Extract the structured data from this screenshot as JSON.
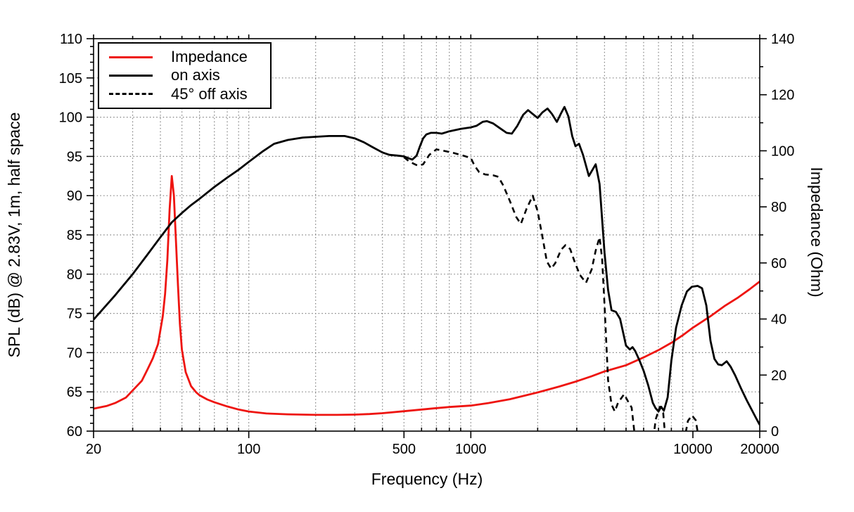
{
  "figure": {
    "kind": "speaker frequency response / impedance plot",
    "background": "#ffffff",
    "frame_color": "#000000",
    "grid_color": "#7f7f7f",
    "axes": {
      "x": {
        "label": "Frequency (Hz)",
        "scale": "log",
        "min": 20,
        "max": 20000,
        "major_ticks": [
          20,
          100,
          500,
          1000,
          10000,
          20000
        ],
        "major_tick_labels": [
          "20",
          "100",
          "500",
          "1000",
          "10000",
          "20000"
        ],
        "minor_ticks": [
          30,
          40,
          50,
          60,
          70,
          80,
          90,
          200,
          300,
          400,
          600,
          700,
          800,
          900,
          2000,
          3000,
          4000,
          5000,
          6000,
          7000,
          8000,
          9000
        ]
      },
      "y_left": {
        "label": "SPL (dB) @ 2.83V, 1m, half space",
        "min": 60,
        "max": 110,
        "major_ticks": [
          60,
          65,
          70,
          75,
          80,
          85,
          90,
          95,
          100,
          105,
          110
        ],
        "major_tick_labels": [
          "60",
          "65",
          "70",
          "75",
          "80",
          "85",
          "90",
          "95",
          "100",
          "105",
          "110"
        ],
        "minor_step": 1
      },
      "y_right": {
        "label": "Impedance (Ohm)",
        "min": 0,
        "max": 140,
        "major_ticks": [
          0,
          20,
          40,
          60,
          80,
          100,
          120,
          140
        ],
        "major_tick_labels": [
          "0",
          "20",
          "40",
          "60",
          "80",
          "100",
          "120",
          "140"
        ],
        "minor_step": 10
      }
    },
    "legend": {
      "position": "top-left",
      "items": [
        {
          "label": "Impedance",
          "color": "#ee1410",
          "style": "solid"
        },
        {
          "label": "on axis",
          "color": "#000000",
          "style": "solid"
        },
        {
          "label": "45° off axis",
          "color": "#000000",
          "style": "dashed"
        }
      ]
    }
  },
  "chart_data": {
    "type": "line",
    "x_unit": "Hz",
    "x_scale": "log",
    "xlim": [
      20,
      20000
    ],
    "ylim_left_spl_db": [
      60,
      110
    ],
    "ylim_right_impedance_ohm": [
      0,
      140
    ],
    "grid": "dotted, vertical at log decade steps, horizontal every 5 dB",
    "series": [
      {
        "name": "Impedance",
        "axis": "right",
        "unit": "Ohm",
        "color": "#ee1410",
        "style": "solid",
        "points": [
          [
            20,
            8.0
          ],
          [
            23,
            9.0
          ],
          [
            25,
            10.0
          ],
          [
            28,
            12.0
          ],
          [
            30,
            14.5
          ],
          [
            33,
            18.0
          ],
          [
            35,
            22.0
          ],
          [
            37,
            26.0
          ],
          [
            39,
            31.0
          ],
          [
            41,
            41.0
          ],
          [
            42,
            49.0
          ],
          [
            43,
            61.0
          ],
          [
            44,
            79.0
          ],
          [
            45,
            91.0
          ],
          [
            46,
            84.0
          ],
          [
            47,
            68.0
          ],
          [
            48,
            52.0
          ],
          [
            49,
            38.0
          ],
          [
            50,
            29.0
          ],
          [
            52,
            21.0
          ],
          [
            55,
            16.0
          ],
          [
            58,
            13.8
          ],
          [
            60,
            12.8
          ],
          [
            65,
            11.3
          ],
          [
            70,
            10.3
          ],
          [
            80,
            8.8
          ],
          [
            90,
            7.7
          ],
          [
            100,
            7.0
          ],
          [
            120,
            6.3
          ],
          [
            150,
            6.0
          ],
          [
            200,
            5.8
          ],
          [
            250,
            5.8
          ],
          [
            300,
            5.9
          ],
          [
            350,
            6.1
          ],
          [
            400,
            6.4
          ],
          [
            500,
            7.1
          ],
          [
            600,
            7.7
          ],
          [
            700,
            8.2
          ],
          [
            800,
            8.6
          ],
          [
            1000,
            9.1
          ],
          [
            1200,
            10.0
          ],
          [
            1500,
            11.4
          ],
          [
            2000,
            13.8
          ],
          [
            2500,
            15.9
          ],
          [
            3000,
            17.8
          ],
          [
            3500,
            19.6
          ],
          [
            4000,
            21.3
          ],
          [
            5000,
            23.5
          ],
          [
            6000,
            26.3
          ],
          [
            7000,
            28.9
          ],
          [
            8000,
            31.5
          ],
          [
            9000,
            34.2
          ],
          [
            10000,
            36.9
          ],
          [
            12000,
            41.0
          ],
          [
            14000,
            44.8
          ],
          [
            16000,
            47.7
          ],
          [
            18000,
            50.6
          ],
          [
            20000,
            53.4
          ]
        ]
      },
      {
        "name": "on axis",
        "axis": "left",
        "unit": "dB",
        "color": "#000000",
        "style": "solid",
        "points": [
          [
            20,
            74.2
          ],
          [
            25,
            77.3
          ],
          [
            30,
            80.0
          ],
          [
            35,
            82.5
          ],
          [
            40,
            84.7
          ],
          [
            45,
            86.6
          ],
          [
            50,
            87.8
          ],
          [
            55,
            88.8
          ],
          [
            60,
            89.6
          ],
          [
            70,
            91.1
          ],
          [
            80,
            92.3
          ],
          [
            90,
            93.3
          ],
          [
            100,
            94.3
          ],
          [
            115,
            95.6
          ],
          [
            130,
            96.6
          ],
          [
            150,
            97.1
          ],
          [
            175,
            97.4
          ],
          [
            200,
            97.5
          ],
          [
            230,
            97.6
          ],
          [
            270,
            97.6
          ],
          [
            300,
            97.3
          ],
          [
            330,
            96.8
          ],
          [
            360,
            96.2
          ],
          [
            400,
            95.5
          ],
          [
            430,
            95.2
          ],
          [
            470,
            95.1
          ],
          [
            500,
            95.0
          ],
          [
            520,
            94.8
          ],
          [
            545,
            94.6
          ],
          [
            570,
            95.1
          ],
          [
            590,
            96.3
          ],
          [
            610,
            97.3
          ],
          [
            630,
            97.8
          ],
          [
            660,
            98.0
          ],
          [
            700,
            98.0
          ],
          [
            740,
            97.9
          ],
          [
            800,
            98.2
          ],
          [
            900,
            98.5
          ],
          [
            1000,
            98.7
          ],
          [
            1060,
            98.9
          ],
          [
            1130,
            99.4
          ],
          [
            1180,
            99.5
          ],
          [
            1260,
            99.2
          ],
          [
            1350,
            98.6
          ],
          [
            1450,
            98.0
          ],
          [
            1530,
            97.9
          ],
          [
            1620,
            98.9
          ],
          [
            1720,
            100.3
          ],
          [
            1810,
            100.9
          ],
          [
            1900,
            100.4
          ],
          [
            2000,
            99.9
          ],
          [
            2100,
            100.6
          ],
          [
            2215,
            101.1
          ],
          [
            2320,
            100.4
          ],
          [
            2440,
            99.4
          ],
          [
            2550,
            100.5
          ],
          [
            2640,
            101.3
          ],
          [
            2750,
            100.1
          ],
          [
            2860,
            97.6
          ],
          [
            2960,
            96.3
          ],
          [
            3070,
            96.6
          ],
          [
            3200,
            95.2
          ],
          [
            3400,
            92.5
          ],
          [
            3650,
            94.0
          ],
          [
            3800,
            91.5
          ],
          [
            4000,
            82.7
          ],
          [
            4150,
            78.0
          ],
          [
            4300,
            75.4
          ],
          [
            4500,
            75.2
          ],
          [
            4700,
            74.3
          ],
          [
            4900,
            72.0
          ],
          [
            5000,
            70.9
          ],
          [
            5200,
            70.4
          ],
          [
            5350,
            70.7
          ],
          [
            5500,
            70.2
          ],
          [
            5750,
            69.0
          ],
          [
            6000,
            67.7
          ],
          [
            6300,
            65.8
          ],
          [
            6600,
            63.6
          ],
          [
            6800,
            62.9
          ],
          [
            7000,
            62.5
          ],
          [
            7200,
            63.1
          ],
          [
            7400,
            62.6
          ],
          [
            7700,
            64.3
          ],
          [
            8000,
            69.0
          ],
          [
            8400,
            73.2
          ],
          [
            8900,
            76.0
          ],
          [
            9400,
            77.8
          ],
          [
            9900,
            78.4
          ],
          [
            10500,
            78.5
          ],
          [
            11000,
            78.2
          ],
          [
            11500,
            76.0
          ],
          [
            12000,
            71.5
          ],
          [
            12500,
            69.2
          ],
          [
            13000,
            68.5
          ],
          [
            13500,
            68.4
          ],
          [
            14200,
            68.9
          ],
          [
            14800,
            68.2
          ],
          [
            15500,
            67.1
          ],
          [
            16500,
            65.4
          ],
          [
            17500,
            63.9
          ],
          [
            18500,
            62.6
          ],
          [
            19300,
            61.6
          ],
          [
            20000,
            60.8
          ]
        ]
      },
      {
        "name": "45° off axis",
        "axis": "left",
        "unit": "dB",
        "color": "#000000",
        "style": "dashed",
        "note": "clipped at 60 dB axis; segments below 60 dB are off-scale",
        "points": [
          [
            500,
            94.9
          ],
          [
            520,
            94.5
          ],
          [
            550,
            94.1
          ],
          [
            580,
            93.8
          ],
          [
            610,
            94.0
          ],
          [
            650,
            95.2
          ],
          [
            700,
            95.9
          ],
          [
            760,
            95.7
          ],
          [
            820,
            95.5
          ],
          [
            900,
            95.2
          ],
          [
            1000,
            94.8
          ],
          [
            1040,
            93.8
          ],
          [
            1090,
            93.0
          ],
          [
            1160,
            92.7
          ],
          [
            1260,
            92.6
          ],
          [
            1330,
            92.4
          ],
          [
            1400,
            91.3
          ],
          [
            1500,
            89.3
          ],
          [
            1600,
            87.3
          ],
          [
            1680,
            86.4
          ],
          [
            1780,
            88.3
          ],
          [
            1900,
            90.0
          ],
          [
            2000,
            88.0
          ],
          [
            2100,
            84.8
          ],
          [
            2200,
            81.6
          ],
          [
            2300,
            80.7
          ],
          [
            2400,
            81.4
          ],
          [
            2550,
            83.1
          ],
          [
            2670,
            83.7
          ],
          [
            2800,
            83.2
          ],
          [
            2950,
            81.4
          ],
          [
            3100,
            79.9
          ],
          [
            3300,
            78.9
          ],
          [
            3500,
            80.6
          ],
          [
            3650,
            83.0
          ],
          [
            3800,
            84.7
          ],
          [
            3900,
            82.0
          ],
          [
            4000,
            76.0
          ],
          [
            4150,
            66.5
          ],
          [
            4300,
            63.4
          ],
          [
            4450,
            62.5
          ],
          [
            4600,
            63.6
          ],
          [
            4900,
            64.7
          ],
          [
            5100,
            63.8
          ],
          [
            5300,
            63.0
          ],
          [
            5420,
            60.5
          ],
          [
            5520,
            58.5
          ],
          [
            6600,
            58.5
          ],
          [
            6800,
            61.5
          ],
          [
            7100,
            63.1
          ],
          [
            7350,
            62.3
          ],
          [
            7550,
            58.5
          ],
          [
            9100,
            58.5
          ],
          [
            9500,
            61.3
          ],
          [
            9900,
            62.0
          ],
          [
            10300,
            61.4
          ],
          [
            10700,
            58.5
          ]
        ]
      }
    ]
  }
}
